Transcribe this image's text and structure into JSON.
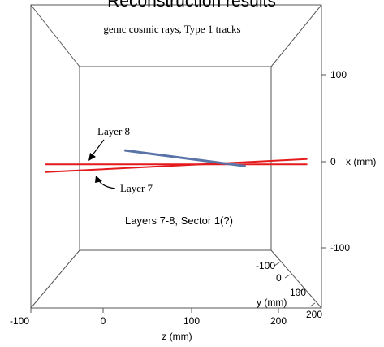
{
  "chart_data": {
    "type": "line",
    "title": "Reconstruction results",
    "subtitle": "gemc cosmic rays, Type 1 tracks",
    "annotation": "Layers 7-8, Sector 1(?)",
    "xlabel": "z (mm)",
    "ylabel": "y (mm)",
    "vlabel": "x (mm)",
    "z_ticks": [
      "-100",
      "0",
      "100",
      "200"
    ],
    "x_ticks": [
      "100",
      "0",
      "-100"
    ],
    "y_ticks": [
      "-100",
      "0",
      "100",
      "200"
    ],
    "zlim": [
      -100,
      250
    ],
    "xlim": [
      -150,
      200
    ],
    "ylim": [
      -150,
      200
    ],
    "series": [
      {
        "name": "Layer 8",
        "color": "#e41a1c",
        "points": [
          [
            -65,
            -3
          ],
          [
            230,
            -3
          ]
        ]
      },
      {
        "name": "Layer 7",
        "color": "#e41a1c",
        "points": [
          [
            -65,
            -12
          ],
          [
            230,
            3
          ]
        ]
      },
      {
        "name": "",
        "color": "#5b74a8",
        "points": [
          [
            25,
            13
          ],
          [
            160,
            -5
          ]
        ]
      }
    ],
    "labels": {
      "layer8": "Layer 8",
      "layer7": "Layer 7"
    }
  }
}
